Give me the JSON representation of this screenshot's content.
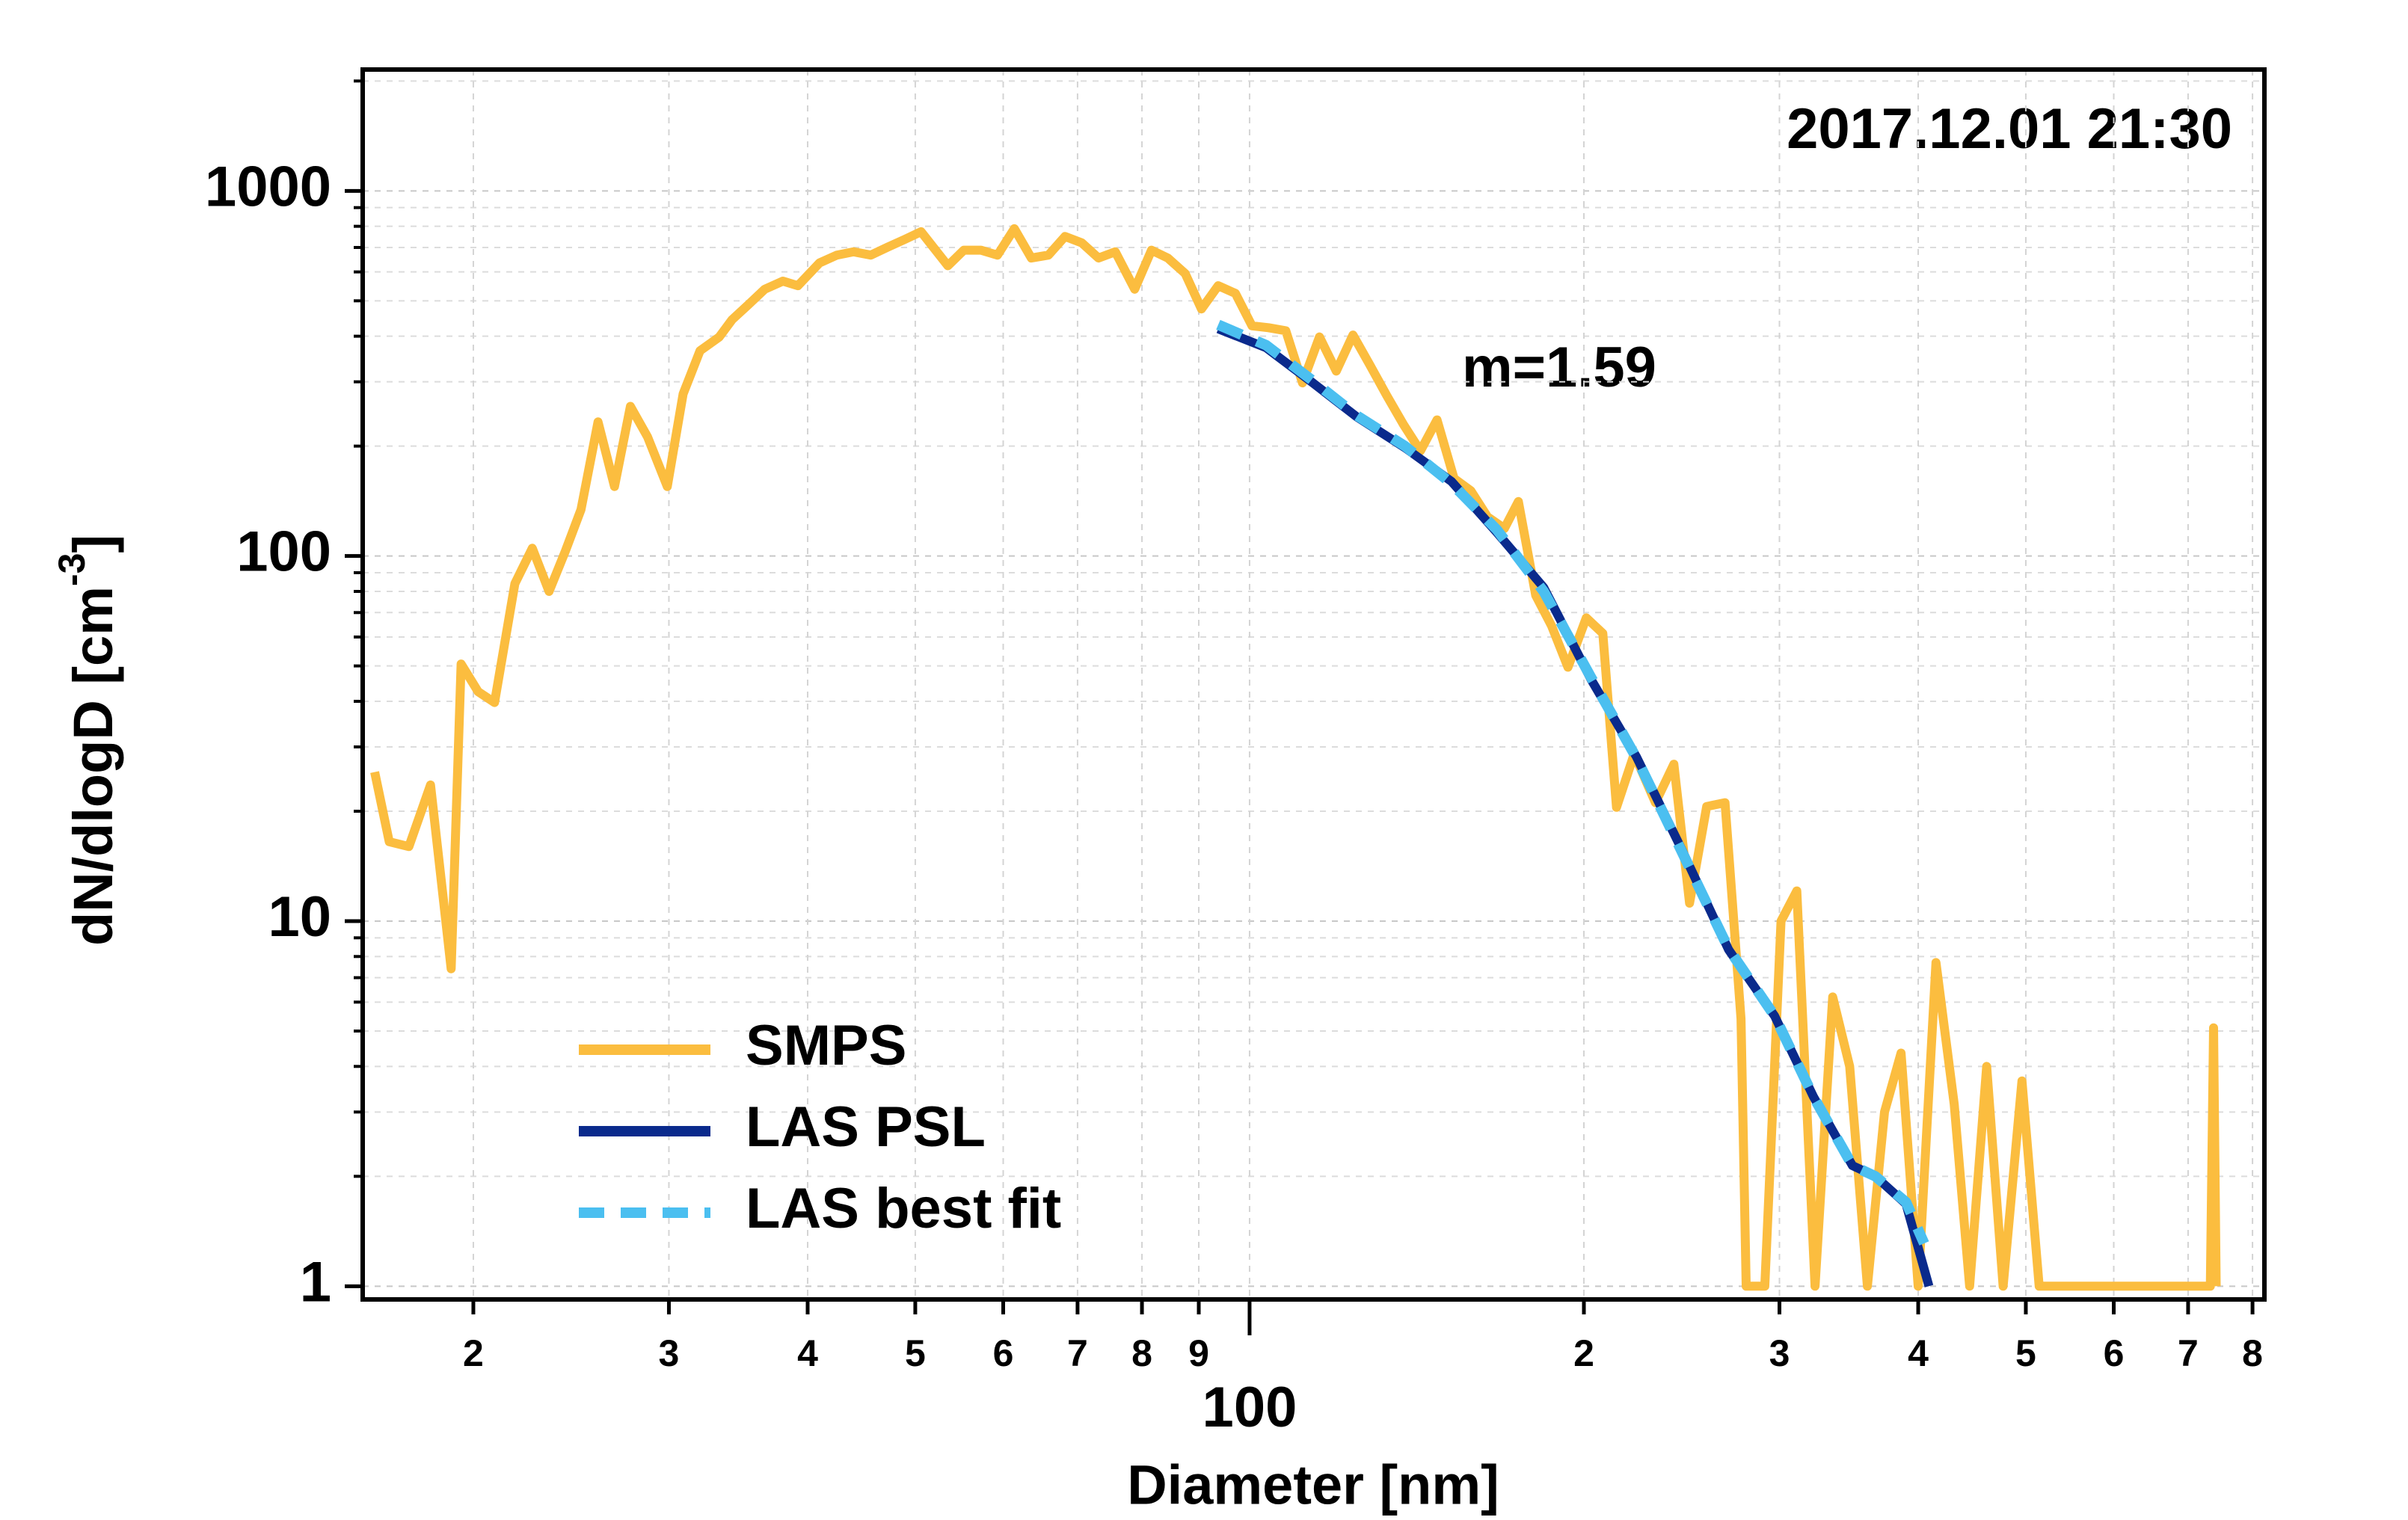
{
  "chart_data": {
    "type": "line",
    "annotations": [
      "2017.12.01 21:30",
      "m=1.59"
    ],
    "xlabel": "Diameter [nm]",
    "ylabel": {
      "text": "dN/dlogD [cm",
      "sup": "-3",
      "end": "]"
    },
    "xlog": true,
    "ylog": true,
    "grid": true,
    "legend": "lower left",
    "xlim": [
      15.9,
      820
    ],
    "ylim": [
      0.92,
      2150
    ],
    "xticks": [
      {
        "value": 20,
        "label": "2"
      },
      {
        "value": 30,
        "label": "3"
      },
      {
        "value": 40,
        "label": "4"
      },
      {
        "value": 50,
        "label": "5"
      },
      {
        "value": 60,
        "label": "6"
      },
      {
        "value": 70,
        "label": "7"
      },
      {
        "value": 80,
        "label": "8"
      },
      {
        "value": 90,
        "label": "9"
      },
      100,
      {
        "value": 200,
        "label": "2"
      },
      {
        "value": 300,
        "label": "3"
      },
      {
        "value": 400,
        "label": "4"
      },
      {
        "value": 500,
        "label": "5"
      },
      {
        "value": 600,
        "label": "6"
      },
      {
        "value": 700,
        "label": "7"
      },
      {
        "value": 800,
        "label": "8"
      }
    ],
    "yticks": [
      1,
      10,
      100,
      1000
    ],
    "yminorticks": [
      2,
      3,
      4,
      5,
      6,
      7,
      8,
      9,
      20,
      30,
      40,
      50,
      60,
      70,
      80,
      90,
      200,
      300,
      400,
      500,
      600,
      700,
      800,
      900,
      2000
    ],
    "series": [
      {
        "name": "SMPS",
        "color": "#fbbd3f",
        "style": "solid",
        "x": [
          16.3,
          16.8,
          17.5,
          18.3,
          19.1,
          19.5,
          20.2,
          20.9,
          21.8,
          22.6,
          23.4,
          24.2,
          25.0,
          25.9,
          26.8,
          27.7,
          28.7,
          29.9,
          30.9,
          32.0,
          33.3,
          34.2,
          35.4,
          36.6,
          38.0,
          39.2,
          41.0,
          42.5,
          44.0,
          45.6,
          47.2,
          48.9,
          50.6,
          53.5,
          55.3,
          57.3,
          59.3,
          61.4,
          63.6,
          65.9,
          68.2,
          70.6,
          73.1,
          75.7,
          78.8,
          81.6,
          84.4,
          87.5,
          90.5,
          93.7,
          97.1,
          100.5,
          104,
          107.8,
          111.6,
          115.6,
          119.7,
          123.9,
          128.3,
          132.9,
          137.6,
          142.5,
          147.5,
          152.8,
          158.2,
          163.8,
          169.6,
          174.6,
          181,
          187,
          193.5,
          201,
          208,
          214,
          222,
          232,
          241,
          249,
          258,
          268,
          277,
          280,
          291,
          301,
          311,
          323,
          335,
          347,
          360,
          373,
          386,
          400,
          415,
          431,
          445,
          461,
          477,
          496,
          514,
          733,
          738,
          742
        ],
        "values": [
          25.6,
          16.5,
          16,
          23.6,
          7.4,
          50.6,
          42.5,
          39.7,
          84,
          105,
          80,
          103,
          134,
          233,
          155,
          257,
          212,
          155,
          278,
          365,
          398,
          444,
          489,
          538,
          566,
          550,
          635,
          667,
          681,
          667,
          701,
          736,
          773,
          624,
          688,
          688,
          667,
          788,
          655,
          667,
          750,
          721,
          655,
          681,
          538,
          688,
          655,
          594,
          475,
          550,
          524,
          427,
          422,
          414,
          298,
          398,
          321,
          403,
          334,
          275,
          229,
          194,
          236,
          163,
          151,
          128,
          119,
          141,
          78,
          64.5,
          49.6,
          67.7,
          61.4,
          20.5,
          28.7,
          21.1,
          26.9,
          11.2,
          20.6,
          21.1,
          5.4,
          1,
          1,
          10,
          12.1,
          1,
          6.2,
          4.0,
          1,
          3.0,
          4.35,
          1,
          7.7,
          3.15,
          1,
          4.0,
          1,
          3.65,
          1,
          1,
          5.1,
          1
        ]
      },
      {
        "name": "LAS PSL",
        "color": "#0a2a8c",
        "style": "solid",
        "x": [
          93.7,
          103.5,
          114,
          125,
          138,
          152,
          167,
          184,
          203,
          223,
          245,
          270,
          297,
          322,
          349,
          366,
          390,
          409
        ],
        "values": [
          419,
          372,
          298,
          240,
          198,
          160,
          116,
          82,
          45.9,
          28.2,
          15.7,
          8.35,
          5.5,
          3.3,
          2.14,
          2.0,
          1.68,
          1.0
        ]
      },
      {
        "name": "LAS best fit",
        "color": "#4bbff0",
        "style": "dashed",
        "x": [
          93.7,
          103.5,
          114,
          125,
          138,
          152,
          167,
          184,
          203,
          223,
          245,
          270,
          297,
          322,
          349,
          366,
          390,
          405
        ],
        "values": [
          430,
          378,
          302,
          242,
          200,
          158,
          118,
          80,
          46.5,
          28.0,
          15.5,
          8.4,
          5.5,
          3.3,
          2.14,
          2.0,
          1.7,
          1.31
        ]
      }
    ]
  }
}
